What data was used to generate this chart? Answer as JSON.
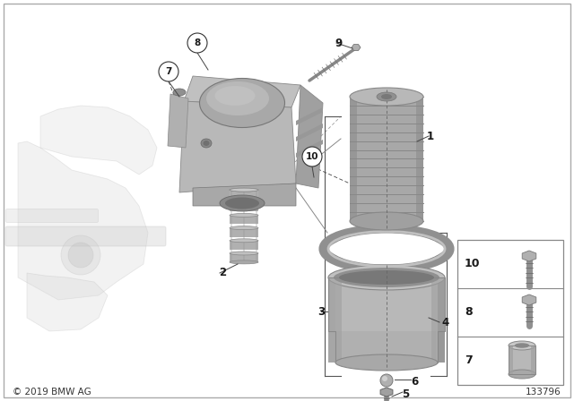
{
  "background_color": "#ffffff",
  "copyright_text": "© 2019 BMW AG",
  "part_number": "133796",
  "fig_width": 6.4,
  "fig_height": 4.48,
  "dpi": 100,
  "gray1": "#c8c8c8",
  "gray2": "#b0b0b0",
  "gray3": "#989898",
  "gray4": "#808080",
  "gray_light": "#dedede",
  "gray_dark": "#606060",
  "label_color": "#1a1a1a",
  "line_color": "#333333"
}
